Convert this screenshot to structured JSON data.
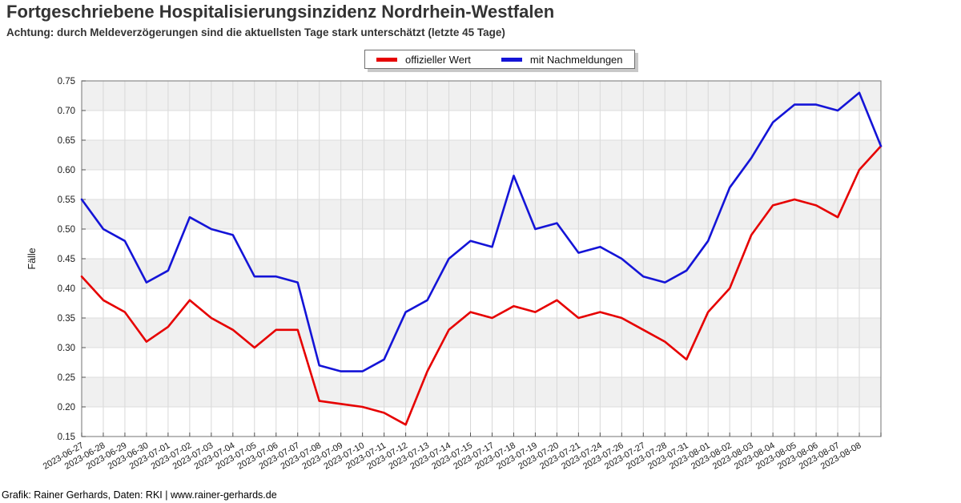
{
  "header": {
    "title": "Fortgeschriebene Hospitalisierungsinzidenz Nordrhein-Westfalen",
    "subtitle": "Achtung: durch Meldeverzögerungen sind die aktuellsten Tage stark unterschätzt (letzte 45 Tage)"
  },
  "legend": {
    "items": [
      {
        "label": "offizieller Wert",
        "color": "#e60000"
      },
      {
        "label": "mit Nachmeldungen",
        "color": "#1414d7"
      }
    ]
  },
  "footer": {
    "credit": "Grafik: Rainer Gerhards, Daten: RKI | www.rainer-gerhards.de"
  },
  "chart_data": {
    "type": "line",
    "title": "Fortgeschriebene Hospitalisierungsinzidenz Nordrhein-Westfalen",
    "xlabel": "",
    "ylabel": "Fälle",
    "ylim": [
      0.15,
      0.75
    ],
    "ytick_step": 0.05,
    "grid": true,
    "background_bands": true,
    "legend_position": "top-center",
    "categories": [
      "2023-06-27",
      "2023-06-28",
      "2023-06-29",
      "2023-06-30",
      "2023-07-01",
      "2023-07-02",
      "2023-07-03",
      "2023-07-04",
      "2023-07-05",
      "2023-07-06",
      "2023-07-07",
      "2023-07-08",
      "2023-07-09",
      "2023-07-10",
      "2023-07-11",
      "2023-07-12",
      "2023-07-13",
      "2023-07-14",
      "2023-07-15",
      "2023-07-17",
      "2023-07-18",
      "2023-07-19",
      "2023-07-20",
      "2023-07-21",
      "2023-07-24",
      "2023-07-26",
      "2023-07-27",
      "2023-07-28",
      "2023-07-31",
      "2023-08-01",
      "2023-08-02",
      "2023-08-03",
      "2023-08-04",
      "2023-08-05",
      "2023-08-06",
      "2023-08-07",
      "2023-08-08",
      ""
    ],
    "series": [
      {
        "name": "offizieller Wert",
        "color": "#e60000",
        "values": [
          0.42,
          0.38,
          0.36,
          0.31,
          0.335,
          0.38,
          0.35,
          0.33,
          0.3,
          0.33,
          0.33,
          0.21,
          0.205,
          0.2,
          0.19,
          0.17,
          0.26,
          0.33,
          0.36,
          0.35,
          0.37,
          0.36,
          0.38,
          0.35,
          0.36,
          0.35,
          0.33,
          0.31,
          0.28,
          0.36,
          0.4,
          0.49,
          0.54,
          0.55,
          0.54,
          0.52,
          0.6,
          0.64
        ]
      },
      {
        "name": "mit Nachmeldungen",
        "color": "#1414d7",
        "values": [
          0.55,
          0.5,
          0.48,
          0.41,
          0.43,
          0.52,
          0.5,
          0.49,
          0.42,
          0.42,
          0.41,
          0.27,
          0.26,
          0.26,
          0.28,
          0.36,
          0.38,
          0.45,
          0.48,
          0.47,
          0.59,
          0.5,
          0.51,
          0.46,
          0.47,
          0.45,
          0.42,
          0.41,
          0.43,
          0.48,
          0.57,
          0.62,
          0.68,
          0.71,
          0.71,
          0.7,
          0.73,
          0.64
        ]
      }
    ]
  }
}
